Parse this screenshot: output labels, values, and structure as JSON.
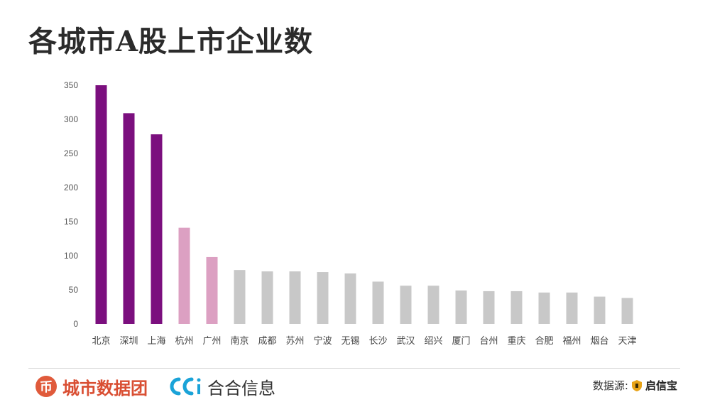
{
  "title": "各城市A股上市企业数",
  "chart_data": {
    "type": "bar",
    "title": "各城市A股上市企业数",
    "categories": [
      "北京",
      "深圳",
      "上海",
      "杭州",
      "广州",
      "南京",
      "成都",
      "苏州",
      "宁波",
      "无锡",
      "长沙",
      "武汉",
      "绍兴",
      "厦门",
      "台州",
      "重庆",
      "合肥",
      "福州",
      "烟台",
      "天津"
    ],
    "values": [
      350,
      309,
      278,
      141,
      98,
      79,
      77,
      77,
      76,
      74,
      62,
      56,
      56,
      49,
      48,
      48,
      46,
      46,
      40,
      38
    ],
    "tiers": [
      "top",
      "top",
      "top",
      "mid",
      "mid",
      "low",
      "low",
      "low",
      "low",
      "low",
      "low",
      "low",
      "low",
      "low",
      "low",
      "low",
      "low",
      "low",
      "low",
      "low"
    ],
    "colors": {
      "top": "#7b0f7e",
      "mid": "#dca0c2",
      "low": "#c8c8c8"
    },
    "ylim": [
      0,
      350
    ],
    "yticks": [
      0,
      50,
      100,
      150,
      200,
      250,
      300,
      350
    ],
    "xlabel": "",
    "ylabel": "",
    "grid": false,
    "legend": "none"
  },
  "footer": {
    "brand1_icon": "币",
    "brand1": "城市数据团",
    "brand2": "合合信息",
    "brand2_icon": "CC",
    "source_label": "数据源:",
    "source_brand": "启信宝"
  }
}
